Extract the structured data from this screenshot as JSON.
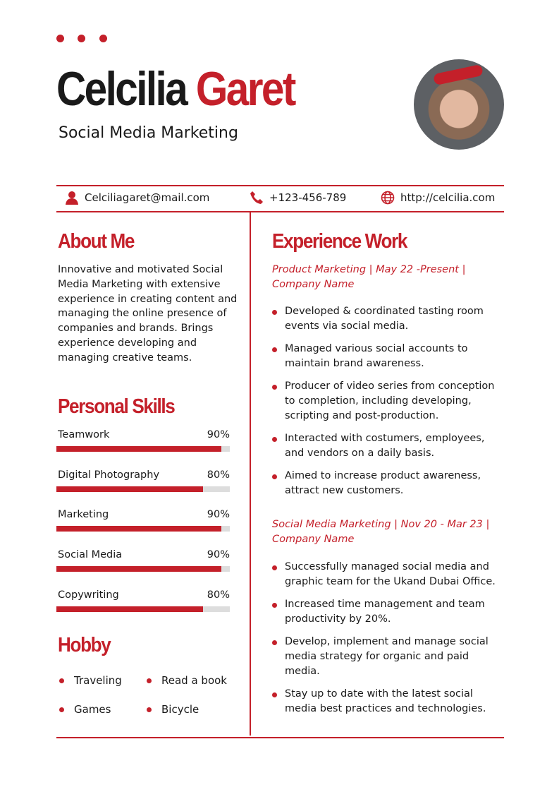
{
  "colors": {
    "accent": "#c4202a"
  },
  "header": {
    "first_name": "Celcilia",
    "last_name": "Garet",
    "role": "Social Media Marketing"
  },
  "contact": {
    "email": "Celciliagaret@mail.com",
    "phone": "+123-456-789",
    "website": "http://celcilia.com"
  },
  "about": {
    "title": "About Me",
    "text": "Innovative and motivated Social Media Marketing with extensive experience in creating content and managing the online presence of companies and brands. Brings experience developing and managing creative teams."
  },
  "skills": {
    "title": "Personal Skills",
    "items": [
      {
        "name": "Teamwork",
        "label": "90%",
        "value": 90
      },
      {
        "name": "Digital Photography",
        "label": "80%",
        "value": 80
      },
      {
        "name": "Marketing",
        "label": "90%",
        "value": 90
      },
      {
        "name": "Social Media",
        "label": "90%",
        "value": 90
      },
      {
        "name": "Copywriting",
        "label": "80%",
        "value": 80
      }
    ]
  },
  "hobby": {
    "title": "Hobby",
    "items": [
      "Traveling",
      "Read a book",
      "Games",
      "Bicycle"
    ]
  },
  "experience": {
    "title": "Experience Work",
    "jobs": [
      {
        "heading": "Product Marketing | May 22 -Present | Company Name",
        "items": [
          "Developed & coordinated tasting room events via social media.",
          "Managed various social accounts to maintain brand awareness.",
          "Producer of video series from conception to completion, including developing, scripting and post-production.",
          "Interacted with costumers, employees, and vendors on a daily basis.",
          "Aimed to increase product awareness, attract new customers."
        ]
      },
      {
        "heading": "Social Media Marketing | Nov 20 - Mar 23 | Company Name",
        "items": [
          "Successfully managed social media and graphic team for the Ukand Dubai Office.",
          "Increased time management and team productivity by 20%.",
          "Develop, implement and manage social media strategy for organic and paid media.",
          "Stay up to date with the latest social media best practices and technologies."
        ]
      }
    ]
  }
}
